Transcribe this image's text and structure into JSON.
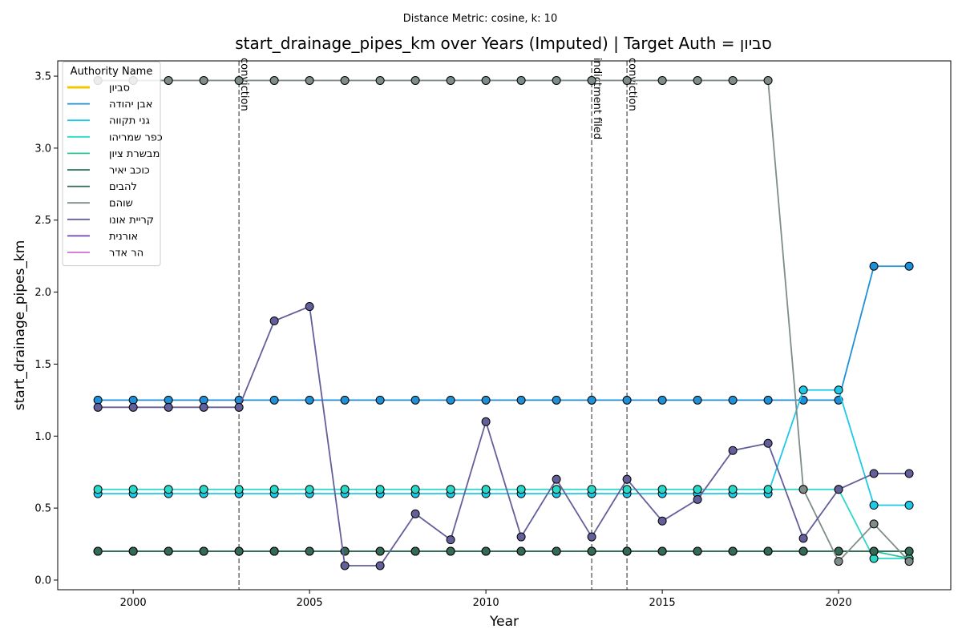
{
  "chart_data": {
    "type": "line",
    "suptitle": "Distance Metric: cosine, k: 10",
    "title": "start_drainage_pipes_km over Years (Imputed) | Target Auth = סביון",
    "xlabel": "Year",
    "ylabel": "start_drainage_pipes_km",
    "legend_title": "Authority Name",
    "legend": "upper left",
    "x": [
      1999,
      2000,
      2001,
      2002,
      2003,
      2004,
      2005,
      2006,
      2007,
      2008,
      2009,
      2010,
      2011,
      2012,
      2013,
      2014,
      2015,
      2016,
      2017,
      2018,
      2019,
      2020,
      2021,
      2022
    ],
    "xlim": [
      1997.86,
      2023.18
    ],
    "xticks": [
      2000,
      2005,
      2010,
      2015,
      2020
    ],
    "ylim": [
      -0.067,
      3.606
    ],
    "yticks": [
      {
        "value": 0,
        "label": "0.0"
      },
      0.5,
      {
        "value": 1,
        "label": "1.0"
      },
      1.5,
      {
        "value": 2,
        "label": "2.0"
      },
      2.5,
      {
        "value": 3,
        "label": "3.0"
      },
      3.5
    ],
    "series": [
      {
        "name": "סביון",
        "color": "#f0c800",
        "width": 3,
        "values": [
          null,
          null,
          null,
          null,
          null,
          null,
          null,
          null,
          null,
          null,
          null,
          null,
          null,
          null,
          null,
          null,
          null,
          null,
          null,
          null,
          null,
          null,
          null,
          null
        ]
      },
      {
        "name": "אבן יהודה",
        "color": "#1f8fd8",
        "values": [
          1.25,
          1.25,
          1.25,
          1.25,
          1.25,
          1.25,
          1.25,
          1.25,
          1.25,
          1.25,
          1.25,
          1.25,
          1.25,
          1.25,
          1.25,
          1.25,
          1.25,
          1.25,
          1.25,
          1.25,
          1.25,
          1.25,
          2.18,
          2.18
        ]
      },
      {
        "name": "גני תקווה",
        "color": "#1ec8e8",
        "values": [
          0.6,
          0.6,
          0.6,
          0.6,
          0.6,
          0.6,
          0.6,
          0.6,
          0.6,
          0.6,
          0.6,
          0.6,
          0.6,
          0.6,
          0.6,
          0.6,
          0.6,
          0.6,
          0.6,
          0.6,
          1.32,
          1.32,
          0.52,
          0.52
        ]
      },
      {
        "name": "כפר שמריהו",
        "color": "#2ad8c8",
        "values": [
          0.63,
          0.63,
          0.63,
          0.63,
          0.63,
          0.63,
          0.63,
          0.63,
          0.63,
          0.63,
          0.63,
          0.63,
          0.63,
          0.63,
          0.63,
          0.63,
          0.63,
          0.63,
          0.63,
          0.63,
          0.63,
          0.63,
          0.15,
          0.15
        ]
      },
      {
        "name": "מבשרת ציון",
        "color": "#2ec49a",
        "values": [
          0.2,
          0.2,
          0.2,
          0.2,
          0.2,
          0.2,
          0.2,
          0.2,
          0.2,
          0.2,
          0.2,
          0.2,
          0.2,
          0.2,
          0.2,
          0.2,
          0.2,
          0.2,
          0.2,
          0.2,
          0.2,
          0.2,
          0.2,
          0.15
        ]
      },
      {
        "name": "כוכב יאיר",
        "color": "#2a7a5a",
        "values": [
          0.2,
          0.2,
          0.2,
          0.2,
          0.2,
          0.2,
          0.2,
          0.2,
          0.2,
          0.2,
          0.2,
          0.2,
          0.2,
          0.2,
          0.2,
          0.2,
          0.2,
          0.2,
          0.2,
          0.2,
          0.2,
          0.2,
          0.2,
          0.2
        ]
      },
      {
        "name": "להבים",
        "color": "#356b55",
        "values": [
          0.2,
          0.2,
          0.2,
          0.2,
          0.2,
          0.2,
          0.2,
          0.2,
          0.2,
          0.2,
          0.2,
          0.2,
          0.2,
          0.2,
          0.2,
          0.2,
          0.2,
          0.2,
          0.2,
          0.2,
          0.2,
          0.2,
          0.2,
          0.2
        ]
      },
      {
        "name": "שוהם",
        "color": "#7f8c8a",
        "values": [
          3.47,
          3.47,
          3.47,
          3.47,
          3.47,
          3.47,
          3.47,
          3.47,
          3.47,
          3.47,
          3.47,
          3.47,
          3.47,
          3.47,
          3.47,
          3.47,
          3.47,
          3.47,
          3.47,
          3.47,
          0.63,
          0.13,
          0.39,
          0.13
        ]
      },
      {
        "name": "קריית אונו",
        "color": "#625f9a",
        "values": [
          1.2,
          1.2,
          1.2,
          1.2,
          1.2,
          1.8,
          1.9,
          0.1,
          0.1,
          0.46,
          0.28,
          1.1,
          0.3,
          0.7,
          0.3,
          0.7,
          0.41,
          0.56,
          0.9,
          0.95,
          0.29,
          0.63,
          0.74,
          0.74
        ]
      },
      {
        "name": "אורנית",
        "color": "#7040b0",
        "values": [
          null,
          null,
          null,
          null,
          null,
          null,
          null,
          null,
          null,
          null,
          null,
          null,
          null,
          null,
          null,
          null,
          null,
          null,
          null,
          null,
          null,
          null,
          null,
          null
        ]
      },
      {
        "name": "הר אדר",
        "color": "#d070d0",
        "values": [
          null,
          null,
          null,
          null,
          null,
          null,
          null,
          null,
          null,
          null,
          null,
          null,
          null,
          null,
          null,
          null,
          null,
          null,
          null,
          null,
          null,
          null,
          null,
          null
        ]
      }
    ],
    "annotations": [
      {
        "x": 2003,
        "label": "conviction"
      },
      {
        "x": 2013,
        "label": "indictment filed"
      },
      {
        "x": 2014,
        "label": "conviction"
      }
    ]
  }
}
